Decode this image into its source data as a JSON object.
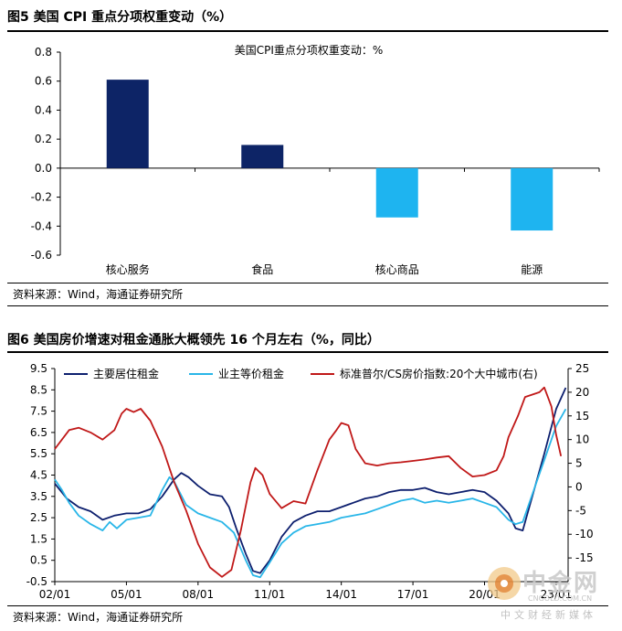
{
  "figure5": {
    "caption": "图5  美国 CPI 重点分项权重变动（%）",
    "source": "资料来源：Wind，海通证券研究所"
  },
  "figure6": {
    "caption": "图6  美国房价增速对租金通胀大概领先 16 个月左右（%，同比）",
    "source": "资料来源：Wind，海通证券研究所"
  },
  "watermark": {
    "brand": "中金网",
    "domain": "CNGOLD.COM.CN",
    "slogan": "中文财经新媒体"
  },
  "chart_data": [
    {
      "type": "bar",
      "title": "美国CPI重点分项权重变动：%",
      "categories": [
        "核心服务",
        "食品",
        "核心商品",
        "能源"
      ],
      "values": [
        0.61,
        0.16,
        -0.34,
        -0.43
      ],
      "ylim": [
        -0.6,
        0.8
      ],
      "yticks": [
        "0.8",
        "0.6",
        "0.4",
        "0.2",
        "0.0",
        "-0.2",
        "-0.4",
        "-0.6"
      ],
      "colors": [
        "#0d2466",
        "#0d2466",
        "#1eb4f0",
        "#1eb4f0"
      ],
      "grid": false
    },
    {
      "type": "line",
      "x_ticks": [
        "02/01",
        "05/01",
        "08/01",
        "11/01",
        "14/01",
        "17/01",
        "20/01",
        "23/01"
      ],
      "x_range": [
        "2002-01",
        "2023-06"
      ],
      "y_left": {
        "ticks": [
          "9.5",
          "8.5",
          "7.5",
          "6.5",
          "5.5",
          "4.5",
          "3.5",
          "2.5",
          "1.5",
          "0.5",
          "-0.5"
        ],
        "ylim": [
          -0.5,
          9.5
        ]
      },
      "y_right": {
        "ticks": [
          "25",
          "20",
          "15",
          "10",
          "5",
          "0",
          "-5",
          "-10",
          "-15"
        ],
        "ylim": [
          -20,
          25
        ]
      },
      "legend_position": "top",
      "grid": false,
      "series": [
        {
          "name": "主要居住租金",
          "axis": "left",
          "color": "#0d1f6e",
          "points": [
            [
              2002.0,
              4.1
            ],
            [
              2002.5,
              3.4
            ],
            [
              2003.0,
              3.0
            ],
            [
              2003.5,
              2.8
            ],
            [
              2004.0,
              2.4
            ],
            [
              2004.5,
              2.6
            ],
            [
              2005.0,
              2.7
            ],
            [
              2005.5,
              2.7
            ],
            [
              2006.0,
              2.9
            ],
            [
              2006.5,
              3.5
            ],
            [
              2007.0,
              4.3
            ],
            [
              2007.3,
              4.6
            ],
            [
              2007.6,
              4.4
            ],
            [
              2008.0,
              4.0
            ],
            [
              2008.5,
              3.6
            ],
            [
              2009.0,
              3.5
            ],
            [
              2009.3,
              3.0
            ],
            [
              2009.6,
              2.0
            ],
            [
              2010.0,
              0.8
            ],
            [
              2010.3,
              0.0
            ],
            [
              2010.6,
              -0.1
            ],
            [
              2011.0,
              0.5
            ],
            [
              2011.5,
              1.6
            ],
            [
              2012.0,
              2.3
            ],
            [
              2012.5,
              2.6
            ],
            [
              2013.0,
              2.8
            ],
            [
              2013.5,
              2.8
            ],
            [
              2014.0,
              3.0
            ],
            [
              2014.5,
              3.2
            ],
            [
              2015.0,
              3.4
            ],
            [
              2015.5,
              3.5
            ],
            [
              2016.0,
              3.7
            ],
            [
              2016.5,
              3.8
            ],
            [
              2017.0,
              3.8
            ],
            [
              2017.5,
              3.9
            ],
            [
              2018.0,
              3.7
            ],
            [
              2018.5,
              3.6
            ],
            [
              2019.0,
              3.7
            ],
            [
              2019.5,
              3.8
            ],
            [
              2020.0,
              3.7
            ],
            [
              2020.5,
              3.3
            ],
            [
              2021.0,
              2.7
            ],
            [
              2021.3,
              2.0
            ],
            [
              2021.6,
              1.9
            ],
            [
              2022.0,
              3.5
            ],
            [
              2022.5,
              5.5
            ],
            [
              2023.0,
              7.6
            ],
            [
              2023.4,
              8.6
            ]
          ]
        },
        {
          "name": "业主等价租金",
          "axis": "left",
          "color": "#29b6e8",
          "points": [
            [
              2002.0,
              4.3
            ],
            [
              2002.3,
              3.8
            ],
            [
              2002.6,
              3.2
            ],
            [
              2003.0,
              2.6
            ],
            [
              2003.5,
              2.2
            ],
            [
              2004.0,
              1.9
            ],
            [
              2004.3,
              2.3
            ],
            [
              2004.6,
              2.0
            ],
            [
              2005.0,
              2.4
            ],
            [
              2005.5,
              2.5
            ],
            [
              2006.0,
              2.6
            ],
            [
              2006.5,
              3.8
            ],
            [
              2006.8,
              4.4
            ],
            [
              2007.0,
              4.2
            ],
            [
              2007.5,
              3.1
            ],
            [
              2008.0,
              2.7
            ],
            [
              2008.5,
              2.5
            ],
            [
              2009.0,
              2.3
            ],
            [
              2009.5,
              1.8
            ],
            [
              2010.0,
              0.5
            ],
            [
              2010.3,
              -0.2
            ],
            [
              2010.6,
              -0.3
            ],
            [
              2011.0,
              0.4
            ],
            [
              2011.5,
              1.3
            ],
            [
              2012.0,
              1.8
            ],
            [
              2012.5,
              2.1
            ],
            [
              2013.0,
              2.2
            ],
            [
              2013.5,
              2.3
            ],
            [
              2014.0,
              2.5
            ],
            [
              2014.5,
              2.6
            ],
            [
              2015.0,
              2.7
            ],
            [
              2015.5,
              2.9
            ],
            [
              2016.0,
              3.1
            ],
            [
              2016.5,
              3.3
            ],
            [
              2017.0,
              3.4
            ],
            [
              2017.5,
              3.2
            ],
            [
              2018.0,
              3.3
            ],
            [
              2018.5,
              3.2
            ],
            [
              2019.0,
              3.3
            ],
            [
              2019.5,
              3.4
            ],
            [
              2020.0,
              3.2
            ],
            [
              2020.5,
              3.0
            ],
            [
              2021.0,
              2.4
            ],
            [
              2021.3,
              2.2
            ],
            [
              2021.6,
              2.3
            ],
            [
              2022.0,
              3.6
            ],
            [
              2022.5,
              5.2
            ],
            [
              2023.0,
              6.8
            ],
            [
              2023.4,
              7.6
            ]
          ]
        },
        {
          "name": "标准普尔/CS房价指数:20个大中城市(右)",
          "axis": "right",
          "color": "#c01818",
          "points": [
            [
              2002.0,
              8.0
            ],
            [
              2002.3,
              10.0
            ],
            [
              2002.6,
              12.0
            ],
            [
              2003.0,
              12.5
            ],
            [
              2003.5,
              11.5
            ],
            [
              2004.0,
              10.0
            ],
            [
              2004.5,
              12.0
            ],
            [
              2004.8,
              15.5
            ],
            [
              2005.0,
              16.5
            ],
            [
              2005.3,
              15.8
            ],
            [
              2005.6,
              16.5
            ],
            [
              2006.0,
              14.0
            ],
            [
              2006.5,
              8.5
            ],
            [
              2007.0,
              1.0
            ],
            [
              2007.5,
              -5.0
            ],
            [
              2008.0,
              -12.0
            ],
            [
              2008.5,
              -17.0
            ],
            [
              2009.0,
              -19.0
            ],
            [
              2009.4,
              -17.5
            ],
            [
              2009.8,
              -9.0
            ],
            [
              2010.2,
              1.0
            ],
            [
              2010.4,
              4.0
            ],
            [
              2010.7,
              2.5
            ],
            [
              2011.0,
              -1.5
            ],
            [
              2011.5,
              -4.5
            ],
            [
              2012.0,
              -3.0
            ],
            [
              2012.5,
              -3.5
            ],
            [
              2013.0,
              3.5
            ],
            [
              2013.5,
              10.0
            ],
            [
              2013.8,
              12.0
            ],
            [
              2014.0,
              13.5
            ],
            [
              2014.3,
              13.0
            ],
            [
              2014.6,
              8.0
            ],
            [
              2015.0,
              5.0
            ],
            [
              2015.5,
              4.5
            ],
            [
              2016.0,
              5.0
            ],
            [
              2016.5,
              5.2
            ],
            [
              2017.0,
              5.5
            ],
            [
              2017.5,
              5.8
            ],
            [
              2018.0,
              6.2
            ],
            [
              2018.5,
              6.5
            ],
            [
              2019.0,
              4.0
            ],
            [
              2019.5,
              2.2
            ],
            [
              2020.0,
              2.5
            ],
            [
              2020.5,
              3.5
            ],
            [
              2020.8,
              6.5
            ],
            [
              2021.0,
              10.5
            ],
            [
              2021.4,
              15.0
            ],
            [
              2021.7,
              19.0
            ],
            [
              2022.0,
              19.5
            ],
            [
              2022.3,
              20.0
            ],
            [
              2022.5,
              21.0
            ],
            [
              2022.8,
              17.0
            ],
            [
              2023.0,
              11.0
            ],
            [
              2023.2,
              6.5
            ]
          ]
        }
      ]
    }
  ]
}
